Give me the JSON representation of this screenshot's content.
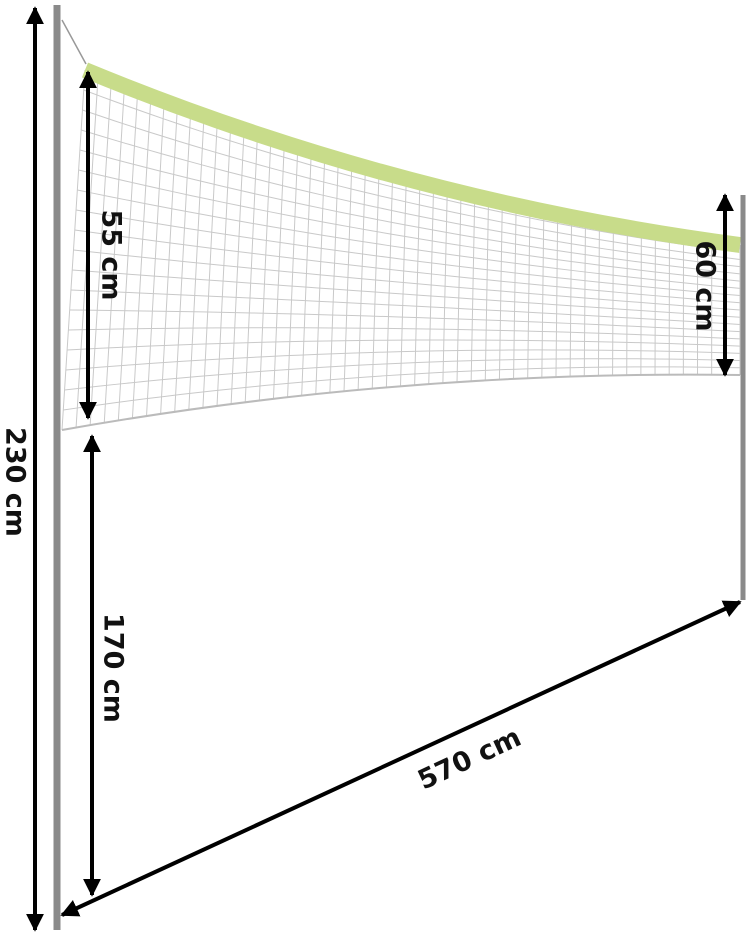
{
  "dimensions": [
    {
      "label": "230 cm"
    },
    {
      "label": "55 cm"
    },
    {
      "label": "170 cm"
    },
    {
      "label": "60 cm"
    },
    {
      "label": "570 cm"
    }
  ]
}
